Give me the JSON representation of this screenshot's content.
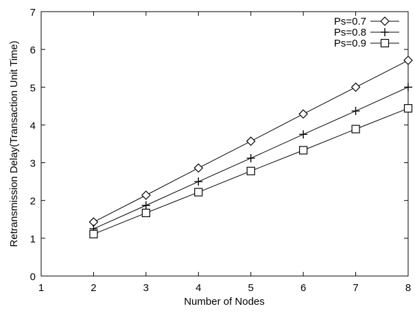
{
  "chart_data": {
    "type": "line",
    "title": "",
    "xlabel": "Number of Nodes",
    "ylabel": "Retransmission Delay(Transaction Unit Time)",
    "xlim": [
      1,
      8
    ],
    "ylim": [
      0,
      7
    ],
    "xticks": [
      "1",
      "2",
      "3",
      "4",
      "5",
      "6",
      "7",
      "8"
    ],
    "yticks": [
      "0",
      "1",
      "2",
      "3",
      "4",
      "5",
      "6",
      "7"
    ],
    "grid": false,
    "legend_position": "top-right",
    "x": [
      2,
      3,
      4,
      5,
      6,
      7,
      8
    ],
    "series": [
      {
        "name": "Ps=0.7",
        "marker": "diamond",
        "values": [
          1.43,
          2.14,
          2.86,
          3.57,
          4.29,
          5.0,
          5.71
        ]
      },
      {
        "name": "Ps=0.8",
        "marker": "plus",
        "values": [
          1.25,
          1.87,
          2.5,
          3.12,
          3.75,
          4.37,
          5.0
        ]
      },
      {
        "name": "Ps=0.9",
        "marker": "square",
        "values": [
          1.11,
          1.67,
          2.22,
          2.78,
          3.33,
          3.89,
          4.44
        ]
      }
    ],
    "line_color": "#000000"
  }
}
